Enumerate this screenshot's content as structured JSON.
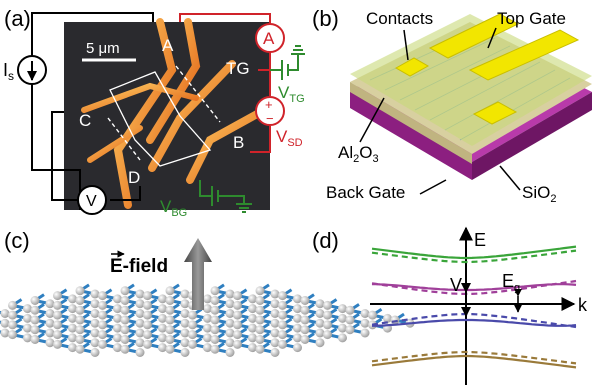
{
  "panels": {
    "a": {
      "label": "(a)",
      "scale_bar": "5 μm",
      "nodes": {
        "A": "A",
        "B": "B",
        "C": "C",
        "D": "D",
        "TG": "TG"
      },
      "current_source": {
        "main": "I",
        "sub": "s"
      },
      "ammeter": "A",
      "voltmeter": "V",
      "vtg": {
        "main": "V",
        "sub": "TG"
      },
      "vsd": {
        "main": "V",
        "sub": "SD"
      },
      "vbg": {
        "main": "V",
        "sub": "BG"
      },
      "polarity_plus": "+",
      "polarity_minus": "−",
      "colors": {
        "red": "#d0232a",
        "green": "#2e8b2e",
        "black": "#000000"
      }
    },
    "b": {
      "label": "(b)",
      "contacts": "Contacts",
      "top_gate": "Top Gate",
      "al2o3": {
        "main": "Al",
        "sub1": "2",
        "mid": "O",
        "sub2": "3"
      },
      "back_gate": "Back Gate",
      "sio2": {
        "main": "SiO",
        "sub": "2"
      },
      "colors": {
        "gate": "#f2e600",
        "oxide": "#c8d87a",
        "substrate": "#a8239c"
      }
    },
    "c": {
      "label": "(c)",
      "efield": "E-field",
      "colors": {
        "bond": "#2f7fc0",
        "atom": "#c8c8c8",
        "arrow": "#555555"
      }
    },
    "d": {
      "label": "(d)",
      "e_axis": "E",
      "k_axis": "k",
      "v_label": "V",
      "eg": {
        "main": "E",
        "sub": "g"
      },
      "colors": {
        "top": "#3aa53a",
        "upper": "#a0409a",
        "lower": "#4a4aaa",
        "bottom": "#9a7a3a"
      }
    }
  }
}
